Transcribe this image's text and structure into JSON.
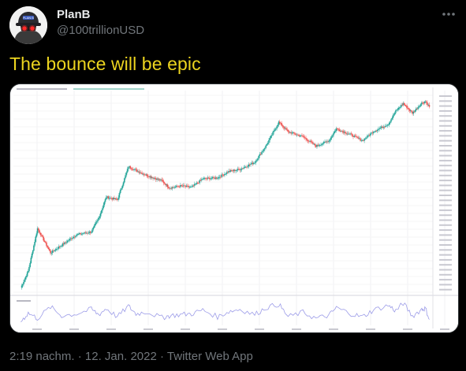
{
  "author": {
    "name": "PlanB",
    "handle": "@100trillionUSD",
    "avatar_badge": "PLAN B",
    "avatar_icon": "cap-with-red-eyes-icon"
  },
  "more_icon": "more-horizontal-icon",
  "tweet": {
    "text": "The bounce will be epic"
  },
  "colors": {
    "background": "#000000",
    "tweet_text": "#ecd41f",
    "secondary_text": "#71767b",
    "candle_up": "#26a69a",
    "candle_down": "#ef5350",
    "oscillator": "#9c9ce8"
  },
  "meta": {
    "time": "2:19 nachm.",
    "separator1": "·",
    "date": "12. Jan. 2022",
    "separator2": "·",
    "source": "Twitter Web App"
  },
  "chart_data": {
    "type": "line",
    "scale": "log",
    "note_shape": "candlestick price chart with oscillator sub-panel",
    "x": [
      2011.0,
      2011.2,
      2011.45,
      2011.8,
      2012.1,
      2012.5,
      2012.9,
      2013.1,
      2013.3,
      2013.6,
      2013.9,
      2014.1,
      2014.4,
      2014.8,
      2015.0,
      2015.3,
      2015.6,
      2015.9,
      2016.3,
      2016.6,
      2016.9,
      2017.3,
      2017.6,
      2017.95,
      2018.2,
      2018.6,
      2018.95,
      2019.3,
      2019.5,
      2019.9,
      2020.2,
      2020.5,
      2020.9,
      2021.1,
      2021.3,
      2021.55,
      2021.8,
      2021.9,
      2022.03
    ],
    "y": [
      0.3,
      0.9,
      15,
      3,
      5,
      10,
      12,
      30,
      120,
      100,
      900,
      700,
      500,
      350,
      220,
      250,
      230,
      400,
      430,
      650,
      750,
      1200,
      3500,
      17000,
      9000,
      6500,
      3500,
      5000,
      11000,
      7300,
      5000,
      9200,
      15000,
      35000,
      58000,
      31000,
      60000,
      67000,
      43000
    ],
    "oscillator_y": [
      40,
      62,
      48,
      78,
      55,
      60,
      72,
      58,
      74,
      52,
      80,
      60,
      65,
      50,
      55,
      58,
      60,
      70,
      52,
      66,
      72,
      58,
      76,
      85,
      52,
      64,
      48,
      56,
      76,
      60,
      52,
      70,
      82,
      68,
      88,
      54,
      72,
      74,
      40
    ],
    "xlim": [
      2010.8,
      2022.1
    ],
    "ylim": [
      0.2,
      100000
    ]
  }
}
